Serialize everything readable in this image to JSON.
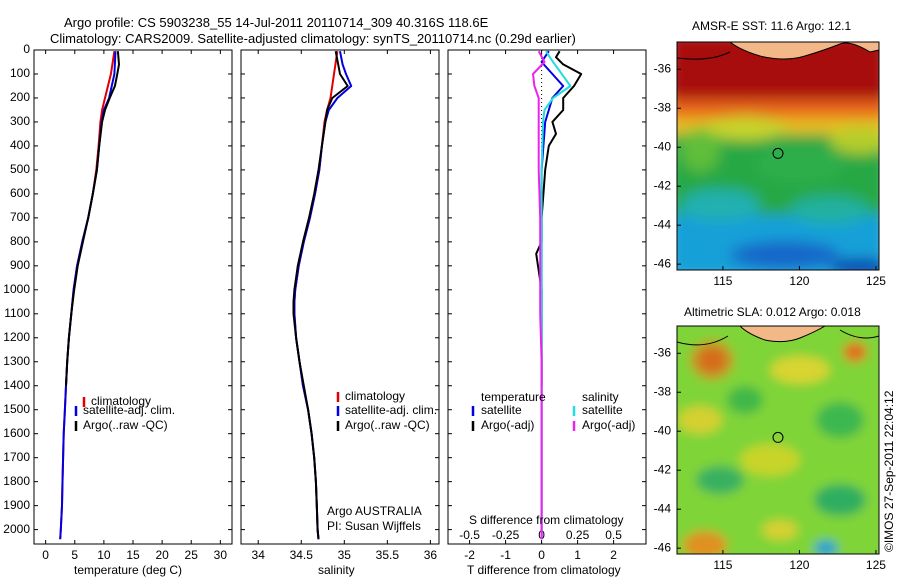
{
  "header": {
    "line1": "Argo profile: CS 5903238_55 14-Jul-2011 20110714_309 40.316S 118.6E",
    "line2": "Climatology: CARS2009. Satellite-adjusted climatology: synTS_20110714.nc (0.29d earlier)"
  },
  "side_stamp": "©IMOS 27-Sep-2011 22:04:12",
  "colors": {
    "climatology": "#e00000",
    "satellite": "#0000e0",
    "argo": "#000000",
    "salinity_sat": "#22dddd",
    "salinity_argo": "#ee22ee"
  },
  "panels": {
    "temperature": {
      "xlabel": "temperature (deg C)",
      "legend": [
        "climatology",
        "satellite-adj. clim.",
        "Argo(..raw -QC)"
      ]
    },
    "salinity": {
      "xlabel": "salinity",
      "legend": [
        "climatology",
        "satellite-adj. clim.",
        "Argo(..raw -QC)"
      ],
      "note1": "Argo AUSTRALIA",
      "note2": "PI: Susan Wijffels"
    },
    "difference": {
      "xlabel": "T difference from climatology",
      "top_label": "S difference from climatology",
      "legend_temp_title": "temperature",
      "legend_sal_title": "salinity",
      "legend_temp": [
        "satellite",
        "Argo(-adj)"
      ],
      "legend_sal": [
        "satellite",
        "Argo(-adj)"
      ]
    },
    "sst_map": {
      "title": "AMSR-E SST: 11.6 Argo: 12.1"
    },
    "sla_map": {
      "title": "Altimetric SLA: 0.012 Argo: 0.018"
    }
  },
  "chart_data": [
    {
      "type": "line",
      "name": "temperature",
      "xlabel": "temperature (deg C)",
      "xlim": [
        -2,
        32
      ],
      "ylim": [
        2060,
        0
      ],
      "xticks": [
        0,
        5,
        10,
        15,
        20,
        25,
        30
      ],
      "yticks": [
        0,
        100,
        200,
        300,
        400,
        500,
        600,
        700,
        800,
        900,
        1000,
        1100,
        1200,
        1300,
        1400,
        1500,
        1600,
        1700,
        1800,
        1900,
        2000
      ],
      "series": [
        {
          "name": "climatology",
          "color": "#e00000",
          "depth": [
            5,
            100,
            200,
            250,
            300,
            400,
            500,
            600,
            700,
            800,
            900,
            1000,
            1100,
            1200,
            1300,
            1400,
            1500,
            1600,
            1700,
            1800,
            1900,
            2000,
            2040
          ],
          "values": [
            11.8,
            11.2,
            10.2,
            9.7,
            9.4,
            9.1,
            8.7,
            8.1,
            7.3,
            6.3,
            5.4,
            4.8,
            4.4,
            4.0,
            3.7,
            3.5,
            3.3,
            3.1,
            3.0,
            2.9,
            2.8,
            2.6,
            2.5
          ]
        },
        {
          "name": "satellite-adj. clim.",
          "color": "#0000e0",
          "depth": [
            5,
            100,
            200,
            250,
            300,
            400,
            500,
            600,
            700,
            800,
            900,
            1000,
            1100,
            1200,
            1300,
            1400,
            1500,
            1600,
            1700,
            1800,
            1900,
            2000,
            2040
          ],
          "values": [
            12.0,
            11.8,
            10.9,
            10.0,
            9.6,
            9.2,
            8.8,
            8.1,
            7.3,
            6.3,
            5.4,
            4.8,
            4.4,
            4.0,
            3.7,
            3.5,
            3.3,
            3.1,
            3.0,
            2.9,
            2.8,
            2.6,
            2.5
          ]
        },
        {
          "name": "Argo(..raw -QC)",
          "color": "#000000",
          "depth": [
            5,
            60,
            100,
            150,
            200,
            250,
            300,
            400,
            500,
            600,
            700,
            800,
            900,
            1000,
            1100,
            1200,
            1300,
            1400
          ],
          "values": [
            12.4,
            12.6,
            12.3,
            11.9,
            11.0,
            10.2,
            9.7,
            9.2,
            8.8,
            8.1,
            7.3,
            6.4,
            5.5,
            4.9,
            4.4,
            4.0,
            3.7,
            3.5
          ]
        }
      ]
    },
    {
      "type": "line",
      "name": "salinity",
      "xlabel": "salinity",
      "xlim": [
        33.8,
        36.1
      ],
      "ylim": [
        2060,
        0
      ],
      "xticks": [
        34,
        34.5,
        35,
        35.5,
        36
      ],
      "series": [
        {
          "name": "climatology",
          "color": "#e00000",
          "depth": [
            5,
            100,
            200,
            250,
            300,
            400,
            500,
            600,
            700,
            800,
            900,
            1000,
            1050,
            1100,
            1200,
            1300,
            1400,
            1500,
            1600,
            1700,
            1800,
            1900,
            2000,
            2040
          ],
          "values": [
            34.92,
            34.88,
            34.84,
            34.8,
            34.77,
            34.74,
            34.71,
            34.66,
            34.6,
            34.53,
            34.47,
            34.43,
            34.42,
            34.42,
            34.44,
            34.48,
            34.52,
            34.58,
            34.62,
            34.65,
            34.67,
            34.68,
            34.69,
            34.7
          ]
        },
        {
          "name": "satellite-adj. clim.",
          "color": "#0000e0",
          "depth": [
            5,
            60,
            100,
            150,
            200,
            250,
            300,
            400,
            500,
            600,
            700,
            800,
            900,
            1000,
            1050,
            1100,
            1200,
            1300,
            1400,
            1500,
            1600,
            1700,
            1800,
            1900,
            2000,
            2040
          ],
          "values": [
            34.95,
            34.98,
            35.02,
            35.08,
            34.92,
            34.82,
            34.78,
            34.74,
            34.71,
            34.66,
            34.6,
            34.53,
            34.47,
            34.43,
            34.42,
            34.42,
            34.44,
            34.48,
            34.52,
            34.58,
            34.62,
            34.65,
            34.67,
            34.68,
            34.69,
            34.7
          ]
        },
        {
          "name": "Argo(..raw -QC)",
          "color": "#000000",
          "depth": [
            5,
            100,
            150,
            200,
            250,
            300,
            400,
            500,
            600,
            700,
            800,
            900,
            1000,
            1050,
            1100,
            1200,
            1300,
            1400,
            1500,
            1600,
            1700,
            1800,
            1900,
            2000,
            2040
          ],
          "values": [
            34.9,
            34.95,
            35.04,
            34.86,
            34.8,
            34.78,
            34.74,
            34.7,
            34.65,
            34.59,
            34.52,
            34.46,
            34.42,
            34.41,
            34.41,
            34.44,
            34.48,
            34.53,
            34.58,
            34.62,
            34.65,
            34.67,
            34.68,
            34.69,
            34.7
          ]
        }
      ]
    },
    {
      "type": "line",
      "name": "difference from climatology",
      "xlabel": "T difference from climatology",
      "top_xlabel": "S difference from climatology",
      "xlim": [
        -2.6,
        2.9
      ],
      "top_xlim": [
        -0.65,
        0.725
      ],
      "ylim": [
        2060,
        0
      ],
      "xticks": [
        -2,
        -1,
        0,
        1,
        2
      ],
      "top_xticks": [
        -0.5,
        -0.25,
        0,
        0.25,
        0.5
      ],
      "series": [
        {
          "name": "temperature satellite",
          "axis": "T",
          "color": "#0000e0",
          "depth": [
            5,
            50,
            100,
            150,
            200,
            250,
            300,
            500,
            800,
            1200,
            1600,
            2040
          ],
          "values": [
            0.2,
            0.0,
            0.3,
            0.6,
            0.3,
            0.2,
            0.1,
            0.0,
            0.0,
            0.0,
            0.0,
            0.0
          ]
        },
        {
          "name": "temperature Argo(-adj)",
          "axis": "T",
          "color": "#000000",
          "depth": [
            5,
            30,
            60,
            100,
            150,
            200,
            250,
            300,
            350,
            400,
            500,
            600,
            700,
            800,
            850,
            900,
            1000,
            1100,
            1200,
            1300,
            1400
          ],
          "values": [
            0.5,
            0.4,
            0.6,
            1.1,
            0.9,
            0.6,
            0.6,
            0.3,
            0.4,
            0.2,
            0.1,
            0.05,
            0.0,
            0.0,
            -0.15,
            -0.1,
            0.0,
            0.0,
            0.0,
            0.0,
            0.0
          ]
        },
        {
          "name": "salinity satellite",
          "axis": "S",
          "color": "#22dddd",
          "depth": [
            5,
            50,
            100,
            150,
            200,
            250,
            300,
            500,
            800,
            1200,
            1600,
            2040
          ],
          "values": [
            0.03,
            0.08,
            0.14,
            0.2,
            0.08,
            0.02,
            0.01,
            0.0,
            0.0,
            0.0,
            0.0,
            0.0
          ]
        },
        {
          "name": "salinity Argo(-adj)",
          "axis": "S",
          "color": "#ee22ee",
          "depth": [
            5,
            50,
            100,
            150,
            200,
            300,
            400,
            500,
            700,
            900,
            1100,
            1300,
            1500,
            2040
          ],
          "values": [
            -0.02,
            0.02,
            -0.06,
            -0.05,
            -0.02,
            -0.02,
            -0.02,
            -0.02,
            -0.01,
            -0.01,
            -0.01,
            0.0,
            0.0,
            0.0
          ]
        }
      ]
    },
    {
      "type": "heatmap",
      "name": "AMSR-E SST",
      "title": "AMSR-E SST: 11.6 Argo: 12.1",
      "xlim": [
        112,
        125.2
      ],
      "ylim": [
        -46.3,
        -34.6
      ],
      "xticks": [
        115,
        120,
        125
      ],
      "yticks": [
        -36,
        -38,
        -40,
        -42,
        -44,
        -46
      ],
      "argo_position": {
        "lon": 118.6,
        "lat": -40.316
      }
    },
    {
      "type": "heatmap",
      "name": "Altimetric SLA",
      "title": "Altimetric SLA: 0.012 Argo: 0.018",
      "xlim": [
        112,
        125.2
      ],
      "ylim": [
        -46.3,
        -34.6
      ],
      "xticks": [
        115,
        120,
        125
      ],
      "yticks": [
        -36,
        -38,
        -40,
        -42,
        -44,
        -46
      ],
      "argo_position": {
        "lon": 118.6,
        "lat": -40.316
      }
    }
  ]
}
